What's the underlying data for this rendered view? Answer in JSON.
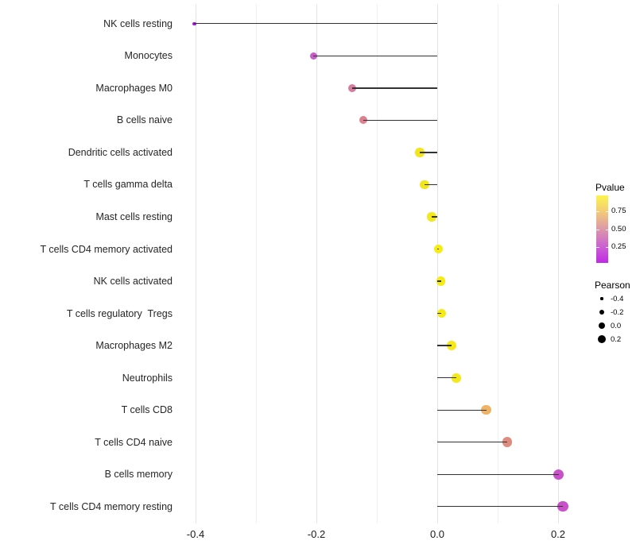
{
  "chart_data": {
    "type": "scatter",
    "subtype": "lollipop",
    "orientation": "horizontal",
    "title": "",
    "xlabel": "",
    "ylabel": "",
    "xlim": [
      -0.41,
      0.25
    ],
    "grid": "vertical-only",
    "x_major_ticks": [
      -0.4,
      -0.2,
      0.0,
      0.2
    ],
    "x_major_labels": [
      "-0.4",
      "-0.2",
      "0.0",
      "0.2"
    ],
    "x_minor_ticks": [
      -0.3,
      -0.1,
      0.1
    ],
    "stem_baseline": 0.0,
    "categories": [
      "NK cells resting",
      "Monocytes",
      "Macrophages M0",
      "B cells naive",
      "Dendritic cells activated",
      "T cells gamma delta",
      "Mast cells resting",
      "T cells CD4 memory activated",
      "NK cells activated",
      "T cells regulatory  Tregs",
      "Macrophages M2",
      "Neutrophils",
      "T cells CD8",
      "T cells CD4 naive",
      "B cells memory",
      "T cells CD4 memory resting"
    ],
    "points": [
      {
        "label": "NK cells resting",
        "pearson": -0.402,
        "pvalue": 0.02,
        "color": "#9d1fd1"
      },
      {
        "label": "Monocytes",
        "pearson": -0.205,
        "pvalue": 0.28,
        "color": "#c75ec7"
      },
      {
        "label": "Macrophages M0",
        "pearson": -0.141,
        "pvalue": 0.45,
        "color": "#d67c9f"
      },
      {
        "label": "B cells naive",
        "pearson": -0.122,
        "pvalue": 0.48,
        "color": "#db818e"
      },
      {
        "label": "Dendritic cells activated",
        "pearson": -0.029,
        "pvalue": 0.93,
        "color": "#f1e51e"
      },
      {
        "label": "T cells gamma delta",
        "pearson": -0.021,
        "pvalue": 0.93,
        "color": "#f1e51e"
      },
      {
        "label": "Mast cells resting",
        "pearson": -0.009,
        "pvalue": 0.95,
        "color": "#f3e91a"
      },
      {
        "label": "T cells CD4 memory activated",
        "pearson": 0.002,
        "pvalue": 0.97,
        "color": "#f5ec12"
      },
      {
        "label": "NK cells activated",
        "pearson": 0.006,
        "pvalue": 0.97,
        "color": "#f5ec12"
      },
      {
        "label": "T cells regulatory  Tregs",
        "pearson": 0.007,
        "pvalue": 0.96,
        "color": "#f4ea16"
      },
      {
        "label": "Macrophages M2",
        "pearson": 0.024,
        "pvalue": 0.95,
        "color": "#f3e91a"
      },
      {
        "label": "Neutrophils",
        "pearson": 0.032,
        "pvalue": 0.95,
        "color": "#f3e91a"
      },
      {
        "label": "T cells CD8",
        "pearson": 0.081,
        "pvalue": 0.68,
        "color": "#eeb366"
      },
      {
        "label": "T cells CD4 naive",
        "pearson": 0.116,
        "pvalue": 0.52,
        "color": "#dd8d7f"
      },
      {
        "label": "B cells memory",
        "pearson": 0.201,
        "pvalue": 0.24,
        "color": "#c851c9"
      },
      {
        "label": "T cells CD4 memory resting",
        "pearson": 0.208,
        "pvalue": 0.24,
        "color": "#c851c9"
      }
    ]
  },
  "legends": {
    "pvalue": {
      "title": "Pvalue",
      "tick_labels": [
        "0.75",
        "0.50",
        "0.25"
      ],
      "tick_values": [
        0.75,
        0.5,
        0.25
      ],
      "bar_range": [
        0.97,
        0.03
      ],
      "gradient_stops": [
        "#fcf44e",
        "#f2c97a",
        "#dc98a9",
        "#cb62d1",
        "#bf2ae4"
      ]
    },
    "pearson": {
      "title": "Pearson",
      "items": [
        {
          "value": -0.4,
          "label": "-0.4"
        },
        {
          "value": -0.2,
          "label": "-0.2"
        },
        {
          "value": 0.0,
          "label": "0.0"
        },
        {
          "value": 0.2,
          "label": "0.2"
        }
      ],
      "dot_color": "#000000"
    }
  },
  "colors": {
    "background": "#ffffff",
    "stem": "#333333",
    "gridline_major": "#e3e3e3",
    "gridline_minor": "#f0f0f0",
    "axis_text": "#1a1a1a"
  }
}
